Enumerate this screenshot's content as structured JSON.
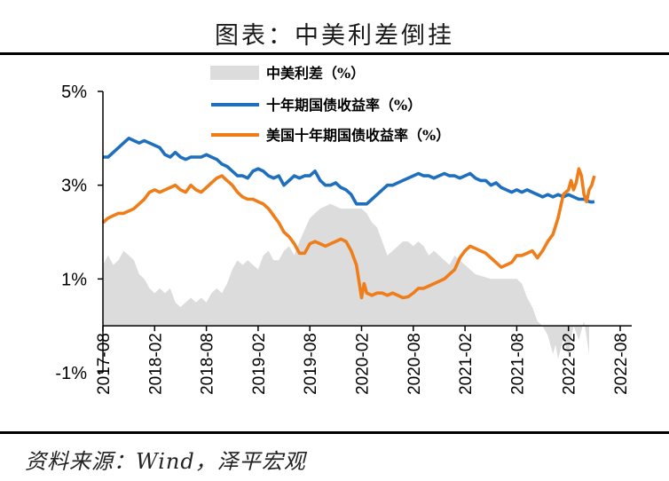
{
  "title": "图表：中美利差倒挂",
  "source": "资料来源：Wind，泽平宏观",
  "colors": {
    "spread": "#dcdcdc",
    "china": "#1f6fbf",
    "us": "#ee7d1a",
    "axis": "#000000"
  },
  "chart_data": {
    "type": "line+area",
    "ylim": [
      -1,
      5
    ],
    "yticks": [
      "5%",
      "3%",
      "1%",
      "-1%"
    ],
    "xticks": [
      "2017-08",
      "2018-02",
      "2018-08",
      "2019-02",
      "2019-08",
      "2020-02",
      "2020-08",
      "2021-02",
      "2021-08",
      "2022-02",
      "2022-08"
    ],
    "legend": [
      "中美利差（%）",
      "十年期国债收益率（%）",
      "美国十年期国债收益率（%）"
    ],
    "series": [
      {
        "name": "中美利差（%）",
        "kind": "area",
        "values": [
          [
            0.0,
            1.3
          ],
          [
            0.1,
            1.5
          ],
          [
            0.2,
            1.3
          ],
          [
            0.3,
            1.4
          ],
          [
            0.4,
            1.6
          ],
          [
            0.5,
            1.5
          ],
          [
            0.6,
            1.4
          ],
          [
            0.7,
            1.1
          ],
          [
            0.8,
            1.0
          ],
          [
            0.9,
            0.8
          ],
          [
            1.0,
            0.7
          ],
          [
            1.1,
            0.8
          ],
          [
            1.2,
            0.7
          ],
          [
            1.3,
            0.8
          ],
          [
            1.4,
            0.5
          ],
          [
            1.5,
            0.4
          ],
          [
            1.6,
            0.5
          ],
          [
            1.7,
            0.6
          ],
          [
            1.8,
            0.5
          ],
          [
            1.9,
            0.6
          ],
          [
            2.0,
            0.5
          ],
          [
            2.1,
            0.7
          ],
          [
            2.2,
            0.8
          ],
          [
            2.3,
            0.7
          ],
          [
            2.4,
            0.9
          ],
          [
            2.5,
            1.2
          ],
          [
            2.6,
            1.4
          ],
          [
            2.7,
            1.3
          ],
          [
            2.8,
            1.4
          ],
          [
            2.9,
            1.3
          ],
          [
            3.0,
            1.2
          ],
          [
            3.1,
            1.5
          ],
          [
            3.2,
            1.6
          ],
          [
            3.3,
            1.4
          ],
          [
            3.4,
            1.4
          ],
          [
            3.5,
            1.6
          ],
          [
            3.6,
            1.7
          ],
          [
            3.7,
            1.5
          ],
          [
            3.8,
            1.8
          ],
          [
            4.0,
            2.3
          ],
          [
            4.2,
            2.5
          ],
          [
            4.4,
            2.6
          ],
          [
            4.6,
            2.5
          ],
          [
            4.8,
            2.5
          ],
          [
            5.0,
            2.5
          ],
          [
            5.1,
            2.4
          ],
          [
            5.2,
            2.2
          ],
          [
            5.3,
            2.1
          ],
          [
            5.4,
            1.8
          ],
          [
            5.5,
            1.5
          ],
          [
            5.6,
            1.6
          ],
          [
            5.7,
            1.7
          ],
          [
            5.8,
            1.8
          ],
          [
            5.9,
            1.8
          ],
          [
            6.0,
            1.7
          ],
          [
            6.1,
            1.8
          ],
          [
            6.2,
            1.7
          ],
          [
            6.3,
            1.5
          ],
          [
            6.4,
            1.6
          ],
          [
            6.5,
            1.5
          ],
          [
            6.6,
            1.4
          ],
          [
            6.7,
            1.3
          ],
          [
            6.8,
            1.5
          ],
          [
            6.9,
            1.4
          ],
          [
            7.0,
            1.3
          ],
          [
            7.1,
            1.2
          ],
          [
            7.2,
            1.1
          ],
          [
            7.5,
            1.0
          ],
          [
            8.0,
            1.0
          ],
          [
            8.1,
            0.9
          ],
          [
            8.2,
            0.6
          ],
          [
            8.3,
            0.4
          ],
          [
            8.4,
            0.1
          ],
          [
            8.5,
            0.0
          ],
          [
            8.6,
            -0.2
          ],
          [
            8.7,
            -0.6
          ],
          [
            8.75,
            -0.4
          ],
          [
            8.8,
            -0.7
          ],
          [
            8.9,
            -0.3
          ],
          [
            9.0,
            -0.6
          ],
          [
            9.1,
            0.0
          ],
          [
            9.2,
            -0.3
          ],
          [
            9.3,
            0.1
          ],
          [
            9.4,
            -0.6
          ]
        ]
      },
      {
        "name": "十年期国债收益率（%）",
        "kind": "line",
        "values": [
          [
            0.0,
            3.6
          ],
          [
            0.1,
            3.6
          ],
          [
            0.2,
            3.7
          ],
          [
            0.3,
            3.8
          ],
          [
            0.4,
            3.9
          ],
          [
            0.5,
            4.0
          ],
          [
            0.6,
            3.95
          ],
          [
            0.7,
            3.9
          ],
          [
            0.8,
            3.95
          ],
          [
            0.9,
            3.9
          ],
          [
            1.0,
            3.85
          ],
          [
            1.1,
            3.8
          ],
          [
            1.2,
            3.65
          ],
          [
            1.3,
            3.6
          ],
          [
            1.4,
            3.7
          ],
          [
            1.5,
            3.6
          ],
          [
            1.6,
            3.55
          ],
          [
            1.7,
            3.6
          ],
          [
            1.8,
            3.6
          ],
          [
            1.9,
            3.6
          ],
          [
            2.0,
            3.65
          ],
          [
            2.1,
            3.6
          ],
          [
            2.2,
            3.55
          ],
          [
            2.3,
            3.45
          ],
          [
            2.4,
            3.4
          ],
          [
            2.5,
            3.3
          ],
          [
            2.6,
            3.2
          ],
          [
            2.7,
            3.2
          ],
          [
            2.8,
            3.15
          ],
          [
            2.9,
            3.3
          ],
          [
            3.0,
            3.35
          ],
          [
            3.1,
            3.3
          ],
          [
            3.2,
            3.2
          ],
          [
            3.3,
            3.15
          ],
          [
            3.4,
            3.2
          ],
          [
            3.5,
            3.0
          ],
          [
            3.6,
            3.1
          ],
          [
            3.7,
            3.2
          ],
          [
            3.8,
            3.15
          ],
          [
            3.9,
            3.2
          ],
          [
            4.0,
            3.2
          ],
          [
            4.1,
            3.3
          ],
          [
            4.2,
            3.1
          ],
          [
            4.3,
            3.0
          ],
          [
            4.4,
            3.0
          ],
          [
            4.5,
            3.05
          ],
          [
            4.6,
            2.95
          ],
          [
            4.7,
            2.9
          ],
          [
            4.8,
            2.8
          ],
          [
            4.9,
            2.6
          ],
          [
            5.0,
            2.6
          ],
          [
            5.1,
            2.6
          ],
          [
            5.2,
            2.7
          ],
          [
            5.3,
            2.8
          ],
          [
            5.4,
            2.9
          ],
          [
            5.5,
            3.0
          ],
          [
            5.6,
            3.0
          ],
          [
            5.7,
            3.05
          ],
          [
            5.8,
            3.1
          ],
          [
            5.9,
            3.15
          ],
          [
            6.0,
            3.2
          ],
          [
            6.1,
            3.25
          ],
          [
            6.2,
            3.2
          ],
          [
            6.3,
            3.2
          ],
          [
            6.4,
            3.15
          ],
          [
            6.5,
            3.2
          ],
          [
            6.6,
            3.25
          ],
          [
            6.7,
            3.2
          ],
          [
            6.8,
            3.2
          ],
          [
            6.9,
            3.15
          ],
          [
            7.0,
            3.2
          ],
          [
            7.1,
            3.25
          ],
          [
            7.2,
            3.15
          ],
          [
            7.3,
            3.1
          ],
          [
            7.4,
            3.1
          ],
          [
            7.5,
            3.0
          ],
          [
            7.6,
            3.05
          ],
          [
            7.7,
            2.95
          ],
          [
            7.8,
            2.9
          ],
          [
            7.9,
            2.85
          ],
          [
            8.0,
            2.9
          ],
          [
            8.1,
            2.85
          ],
          [
            8.2,
            2.9
          ],
          [
            8.3,
            2.85
          ],
          [
            8.4,
            2.8
          ],
          [
            8.5,
            2.75
          ],
          [
            8.6,
            2.8
          ],
          [
            8.7,
            2.75
          ],
          [
            8.8,
            2.8
          ],
          [
            8.9,
            2.75
          ],
          [
            9.0,
            2.8
          ],
          [
            9.1,
            2.75
          ],
          [
            9.2,
            2.7
          ],
          [
            9.3,
            2.7
          ],
          [
            9.35,
            2.68
          ],
          [
            9.4,
            2.65
          ],
          [
            9.45,
            2.64
          ],
          [
            9.5,
            2.65
          ]
        ]
      },
      {
        "name": "美国十年期国债收益率（%）",
        "kind": "line",
        "values": [
          [
            0.0,
            2.2
          ],
          [
            0.1,
            2.3
          ],
          [
            0.2,
            2.35
          ],
          [
            0.3,
            2.4
          ],
          [
            0.4,
            2.4
          ],
          [
            0.5,
            2.45
          ],
          [
            0.6,
            2.5
          ],
          [
            0.7,
            2.6
          ],
          [
            0.8,
            2.7
          ],
          [
            0.9,
            2.85
          ],
          [
            1.0,
            2.9
          ],
          [
            1.1,
            2.85
          ],
          [
            1.2,
            2.9
          ],
          [
            1.3,
            2.95
          ],
          [
            1.4,
            3.0
          ],
          [
            1.5,
            2.9
          ],
          [
            1.6,
            2.85
          ],
          [
            1.7,
            3.0
          ],
          [
            1.8,
            2.9
          ],
          [
            1.9,
            2.85
          ],
          [
            2.0,
            2.95
          ],
          [
            2.1,
            3.05
          ],
          [
            2.2,
            3.15
          ],
          [
            2.3,
            3.2
          ],
          [
            2.4,
            3.1
          ],
          [
            2.5,
            3.0
          ],
          [
            2.6,
            2.85
          ],
          [
            2.7,
            2.75
          ],
          [
            2.8,
            2.7
          ],
          [
            2.9,
            2.7
          ],
          [
            3.0,
            2.65
          ],
          [
            3.1,
            2.6
          ],
          [
            3.2,
            2.5
          ],
          [
            3.3,
            2.35
          ],
          [
            3.4,
            2.2
          ],
          [
            3.5,
            2.0
          ],
          [
            3.6,
            1.9
          ],
          [
            3.7,
            1.75
          ],
          [
            3.8,
            1.55
          ],
          [
            3.9,
            1.55
          ],
          [
            4.0,
            1.75
          ],
          [
            4.1,
            1.8
          ],
          [
            4.2,
            1.75
          ],
          [
            4.3,
            1.7
          ],
          [
            4.4,
            1.75
          ],
          [
            4.5,
            1.8
          ],
          [
            4.6,
            1.85
          ],
          [
            4.7,
            1.8
          ],
          [
            4.8,
            1.6
          ],
          [
            4.9,
            1.3
          ],
          [
            5.0,
            0.6
          ],
          [
            5.05,
            0.9
          ],
          [
            5.1,
            0.7
          ],
          [
            5.2,
            0.65
          ],
          [
            5.3,
            0.7
          ],
          [
            5.4,
            0.7
          ],
          [
            5.5,
            0.65
          ],
          [
            5.6,
            0.7
          ],
          [
            5.7,
            0.65
          ],
          [
            5.8,
            0.6
          ],
          [
            5.9,
            0.62
          ],
          [
            6.0,
            0.7
          ],
          [
            6.1,
            0.8
          ],
          [
            6.2,
            0.8
          ],
          [
            6.3,
            0.85
          ],
          [
            6.4,
            0.9
          ],
          [
            6.5,
            0.95
          ],
          [
            6.6,
            1.0
          ],
          [
            6.7,
            1.1
          ],
          [
            6.8,
            1.2
          ],
          [
            6.9,
            1.45
          ],
          [
            7.0,
            1.6
          ],
          [
            7.1,
            1.7
          ],
          [
            7.2,
            1.65
          ],
          [
            7.3,
            1.6
          ],
          [
            7.4,
            1.55
          ],
          [
            7.5,
            1.45
          ],
          [
            7.6,
            1.35
          ],
          [
            7.7,
            1.25
          ],
          [
            7.8,
            1.3
          ],
          [
            7.9,
            1.35
          ],
          [
            8.0,
            1.5
          ],
          [
            8.1,
            1.5
          ],
          [
            8.2,
            1.55
          ],
          [
            8.3,
            1.6
          ],
          [
            8.4,
            1.45
          ],
          [
            8.5,
            1.6
          ],
          [
            8.6,
            1.8
          ],
          [
            8.7,
            1.95
          ],
          [
            8.8,
            2.3
          ],
          [
            8.9,
            2.8
          ],
          [
            9.0,
            2.9
          ],
          [
            9.05,
            3.1
          ],
          [
            9.1,
            2.9
          ],
          [
            9.15,
            3.05
          ],
          [
            9.2,
            3.35
          ],
          [
            9.25,
            3.2
          ],
          [
            9.3,
            2.8
          ],
          [
            9.35,
            2.65
          ],
          [
            9.4,
            2.9
          ],
          [
            9.45,
            3.0
          ],
          [
            9.5,
            3.2
          ]
        ]
      }
    ]
  }
}
